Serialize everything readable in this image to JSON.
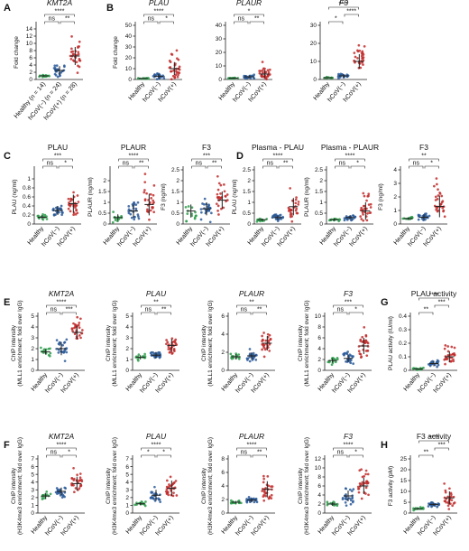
{
  "colors": {
    "Healthy": "#2e9e4c",
    "hCoV(-)": "#2a5b9a",
    "hCoV(+)": "#c22b2b"
  },
  "chart_data": [
    {
      "type": "scatter",
      "panel": "A",
      "title": "KMT2A",
      "italic": true,
      "ylabel": "Fold change",
      "ylim": [
        0,
        15
      ],
      "ticks": [
        0,
        2,
        4,
        6,
        8,
        10,
        12,
        14
      ],
      "categories": [
        "Healthy (n = 14)",
        "hCoV(−) (n = 24)",
        "hCoV(+) (n = 28)"
      ],
      "values": [
        1,
        2.5,
        6.5
      ],
      "spread": [
        0.2,
        1.2,
        2.5
      ],
      "n": [
        14,
        24,
        28
      ],
      "brackets": [
        {
          "from": 0,
          "to": 1,
          "label": "ns",
          "level": 1
        },
        {
          "from": 1,
          "to": 2,
          "label": "**",
          "level": 1
        },
        {
          "from": 0,
          "to": 2,
          "label": "****",
          "level": 2
        }
      ]
    },
    {
      "type": "scatter",
      "panel": "B",
      "title": "PLAU",
      "italic": true,
      "ylabel": "Fold change",
      "ylim": [
        0,
        50
      ],
      "ticks": [
        0,
        10,
        20,
        30,
        40,
        50
      ],
      "categories": [
        "Healthy",
        "hCoV(−)",
        "hCoV(+)"
      ],
      "values": [
        1,
        3,
        10
      ],
      "spread": [
        0.2,
        2,
        6
      ],
      "n": [
        14,
        22,
        30
      ],
      "brackets": [
        {
          "from": 0,
          "to": 1,
          "label": "ns",
          "level": 1
        },
        {
          "from": 1,
          "to": 2,
          "label": "*",
          "level": 1
        },
        {
          "from": 0,
          "to": 2,
          "label": "****",
          "level": 2
        }
      ]
    },
    {
      "type": "scatter",
      "panel": "",
      "title": "PLAUR",
      "italic": true,
      "ylabel": "",
      "ylim": [
        0,
        40
      ],
      "ticks": [
        0,
        10,
        20,
        30,
        40
      ],
      "categories": [
        "Healthy",
        "hCoV(−)",
        "hCoV(+)"
      ],
      "values": [
        1,
        2,
        4
      ],
      "spread": [
        0.2,
        1,
        3
      ],
      "n": [
        14,
        22,
        30
      ],
      "brackets": [
        {
          "from": 0,
          "to": 1,
          "label": "ns",
          "level": 1
        },
        {
          "from": 1,
          "to": 2,
          "label": "**",
          "level": 1
        },
        {
          "from": 0,
          "to": 2,
          "label": "*",
          "level": 2
        }
      ]
    },
    {
      "type": "scatter",
      "panel": "",
      "title": "F3",
      "italic": true,
      "ylabel": "",
      "ylim": [
        0,
        30
      ],
      "ticks": [
        0,
        10,
        20,
        30
      ],
      "categories": [
        "Healthy",
        "hCoV(−)",
        "hCoV(+)"
      ],
      "values": [
        1,
        2,
        10
      ],
      "spread": [
        0.2,
        1,
        4
      ],
      "n": [
        14,
        22,
        30
      ],
      "brackets": [
        {
          "from": 0,
          "to": 1,
          "label": "*",
          "level": 1
        },
        {
          "from": 1,
          "to": 2,
          "label": "****",
          "level": 2
        },
        {
          "from": 0,
          "to": 2,
          "label": "****",
          "level": 3
        }
      ]
    },
    {
      "type": "scatter",
      "panel": "C",
      "title": "PLAU",
      "italic": false,
      "ylabel": "PLAU (ng/ml)",
      "ylim": [
        0,
        1.2
      ],
      "ticks": [
        0,
        0.2,
        0.4,
        0.6,
        0.8,
        1.0
      ],
      "categories": [
        "Healthy",
        "hCoV(−)",
        "hCoV(+)"
      ],
      "values": [
        0.15,
        0.3,
        0.45
      ],
      "spread": [
        0.05,
        0.1,
        0.2
      ],
      "n": [
        14,
        24,
        28
      ],
      "brackets": [
        {
          "from": 0,
          "to": 1,
          "label": "ns",
          "level": 1
        },
        {
          "from": 1,
          "to": 2,
          "label": "*",
          "level": 1
        },
        {
          "from": 0,
          "to": 2,
          "label": "***",
          "level": 2
        }
      ]
    },
    {
      "type": "scatter",
      "panel": "",
      "title": "PLAUR",
      "italic": false,
      "ylabel": "PLAUR (ng/ml)",
      "ylim": [
        0,
        2.5
      ],
      "ticks": [
        0,
        0.5,
        1.0,
        1.5,
        2.0
      ],
      "categories": [
        "Healthy",
        "hCoV(−)",
        "hCoV(+)"
      ],
      "values": [
        0.3,
        0.6,
        0.9
      ],
      "spread": [
        0.15,
        0.3,
        0.5
      ],
      "n": [
        14,
        24,
        28
      ],
      "brackets": [
        {
          "from": 0,
          "to": 1,
          "label": "ns",
          "level": 1
        },
        {
          "from": 1,
          "to": 2,
          "label": "**",
          "level": 1
        },
        {
          "from": 0,
          "to": 2,
          "label": "****",
          "level": 2
        }
      ]
    },
    {
      "type": "scatter",
      "panel": "",
      "title": "F3",
      "italic": false,
      "ylabel": "F3 (ng/ml)",
      "ylim": [
        0,
        2.5
      ],
      "ticks": [
        0,
        0.5,
        1.0,
        1.5,
        2.0,
        2.5
      ],
      "categories": [
        "Healthy",
        "hCoV(−)",
        "hCoV(+)"
      ],
      "values": [
        0.6,
        0.7,
        1.1
      ],
      "spread": [
        0.3,
        0.3,
        0.4
      ],
      "n": [
        14,
        24,
        28
      ],
      "brackets": [
        {
          "from": 0,
          "to": 1,
          "label": "ns",
          "level": 1
        },
        {
          "from": 1,
          "to": 2,
          "label": "**",
          "level": 1
        },
        {
          "from": 0,
          "to": 2,
          "label": "***",
          "level": 2
        }
      ]
    },
    {
      "type": "scatter",
      "panel": "D",
      "title": "Plasma - PLAU",
      "italic": false,
      "ylabel": "PLAU (ng/ml)",
      "ylim": [
        0,
        2.5
      ],
      "ticks": [
        0,
        0.5,
        1.0,
        1.5,
        2.0,
        2.5
      ],
      "categories": [
        "Healthy",
        "hCoV(−)",
        "hCoV(+)"
      ],
      "values": [
        0.2,
        0.3,
        0.8
      ],
      "spread": [
        0.05,
        0.1,
        0.4
      ],
      "n": [
        14,
        24,
        28
      ],
      "brackets": [
        {
          "from": 0,
          "to": 1,
          "label": "ns",
          "level": 1
        },
        {
          "from": 1,
          "to": 2,
          "label": "**",
          "level": 1
        },
        {
          "from": 0,
          "to": 2,
          "label": "****",
          "level": 2
        }
      ]
    },
    {
      "type": "scatter",
      "panel": "",
      "title": "Plasma - PLAUR",
      "italic": false,
      "ylabel": "PLAUR (ng/ml)",
      "ylim": [
        0,
        2.5
      ],
      "ticks": [
        0,
        0.5,
        1.0,
        1.5,
        2.0,
        2.5
      ],
      "categories": [
        "Healthy",
        "hCoV(−)",
        "hCoV(+)"
      ],
      "values": [
        0.2,
        0.3,
        0.6
      ],
      "spread": [
        0.05,
        0.1,
        0.4
      ],
      "n": [
        14,
        24,
        28
      ],
      "brackets": [
        {
          "from": 0,
          "to": 1,
          "label": "ns",
          "level": 1
        },
        {
          "from": 1,
          "to": 2,
          "label": "*",
          "level": 1
        },
        {
          "from": 0,
          "to": 2,
          "label": "****",
          "level": 2
        }
      ]
    },
    {
      "type": "scatter",
      "panel": "",
      "title": "F3",
      "italic": false,
      "ylabel": "F3 (ng/ml)",
      "ylim": [
        0,
        4
      ],
      "ticks": [
        0,
        1,
        2,
        3,
        4
      ],
      "categories": [
        "Healthy",
        "hCoV(−)",
        "hCoV(+)"
      ],
      "values": [
        0.4,
        0.5,
        1.3
      ],
      "spread": [
        0.1,
        0.2,
        0.8
      ],
      "n": [
        14,
        24,
        28
      ],
      "brackets": [
        {
          "from": 0,
          "to": 1,
          "label": "ns",
          "level": 1
        },
        {
          "from": 1,
          "to": 2,
          "label": "*",
          "level": 1
        },
        {
          "from": 0,
          "to": 2,
          "label": "**",
          "level": 2
        }
      ]
    },
    {
      "type": "scatter",
      "panel": "E",
      "title": "KMT2A",
      "italic": true,
      "ylabel": "ChIP intensity (MLL1 enrichment; fold over IgG)",
      "ylim": [
        0,
        5
      ],
      "ticks": [
        0,
        1,
        2,
        3,
        4,
        5
      ],
      "categories": [
        "Healthy",
        "hCoV(−)",
        "hCoV(+)"
      ],
      "values": [
        1.7,
        2.0,
        3.5
      ],
      "spread": [
        0.25,
        0.6,
        0.6
      ],
      "n": [
        14,
        24,
        28
      ],
      "brackets": [
        {
          "from": 0,
          "to": 1,
          "label": "ns",
          "level": 1
        },
        {
          "from": 1,
          "to": 2,
          "label": "***",
          "level": 1
        },
        {
          "from": 0,
          "to": 2,
          "label": "****",
          "level": 2
        }
      ]
    },
    {
      "type": "scatter",
      "panel": "",
      "title": "PLAU",
      "italic": true,
      "ylabel": "ChIP intensity (MLL1 enrichment; fold over IgG)",
      "ylim": [
        0,
        5
      ],
      "ticks": [
        0,
        1,
        2,
        3,
        4,
        5
      ],
      "categories": [
        "Healthy",
        "hCoV(−)",
        "hCoV(+)"
      ],
      "values": [
        1.2,
        1.4,
        2.3
      ],
      "spread": [
        0.2,
        0.3,
        0.6
      ],
      "n": [
        14,
        24,
        28
      ],
      "brackets": [
        {
          "from": 0,
          "to": 1,
          "label": "ns",
          "level": 1
        },
        {
          "from": 1,
          "to": 2,
          "label": "**",
          "level": 1
        },
        {
          "from": 0,
          "to": 2,
          "label": "**",
          "level": 2
        }
      ]
    },
    {
      "type": "scatter",
      "panel": "",
      "title": "PLAUR",
      "italic": true,
      "ylabel": "ChIP intensity (MLL1 enrichment; fold over IgG)",
      "ylim": [
        0,
        6
      ],
      "ticks": [
        0,
        2,
        4,
        6
      ],
      "categories": [
        "Healthy",
        "hCoV(−)",
        "hCoV(+)"
      ],
      "values": [
        1.5,
        1.6,
        3.0
      ],
      "spread": [
        0.3,
        0.4,
        0.8
      ],
      "n": [
        14,
        24,
        28
      ],
      "brackets": [
        {
          "from": 0,
          "to": 1,
          "label": "ns",
          "level": 1
        },
        {
          "from": 1,
          "to": 2,
          "label": "**",
          "level": 1
        },
        {
          "from": 0,
          "to": 2,
          "label": "**",
          "level": 2
        }
      ]
    },
    {
      "type": "scatter",
      "panel": "",
      "title": "F3",
      "italic": true,
      "ylabel": "ChIP intensity (MLL1 enrichment; fold over IgG)",
      "ylim": [
        0,
        10
      ],
      "ticks": [
        0,
        2,
        4,
        6,
        8,
        10
      ],
      "categories": [
        "Healthy",
        "hCoV(−)",
        "hCoV(+)"
      ],
      "values": [
        1.8,
        2.2,
        4.5
      ],
      "spread": [
        0.4,
        0.7,
        1.5
      ],
      "n": [
        14,
        24,
        28
      ],
      "brackets": [
        {
          "from": 0,
          "to": 1,
          "label": "ns",
          "level": 1
        },
        {
          "from": 1,
          "to": 2,
          "label": "*",
          "level": 1
        },
        {
          "from": 0,
          "to": 2,
          "label": "***",
          "level": 2
        }
      ]
    },
    {
      "type": "scatter",
      "panel": "G",
      "title": "PLAU activity",
      "italic": false,
      "ylabel": "PLAU activity (IU/ml)",
      "ylim": [
        0,
        0.4
      ],
      "ticks": [
        0,
        0.1,
        0.2,
        0.3,
        0.4
      ],
      "categories": [
        "Healthy",
        "hCoV(−)",
        "hCoV(+)"
      ],
      "values": [
        0.01,
        0.05,
        0.1
      ],
      "spread": [
        0.005,
        0.02,
        0.04
      ],
      "n": [
        14,
        24,
        28
      ],
      "brackets": [
        {
          "from": 0,
          "to": 1,
          "label": "**",
          "level": 1
        },
        {
          "from": 1,
          "to": 2,
          "label": "***",
          "level": 2
        },
        {
          "from": 0,
          "to": 2,
          "label": "****",
          "level": 3
        }
      ]
    },
    {
      "type": "scatter",
      "panel": "F",
      "title": "KMT2A",
      "italic": true,
      "ylabel": "ChIP intensity (H3K4me3 enrichment; fold over IgG)",
      "ylim": [
        0,
        7
      ],
      "ticks": [
        0,
        1,
        2,
        3,
        4,
        5,
        6,
        7
      ],
      "categories": [
        "Healthy",
        "hCoV(−)",
        "hCoV(+)"
      ],
      "values": [
        2.2,
        2.8,
        3.8
      ],
      "spread": [
        0.4,
        0.5,
        0.9
      ],
      "n": [
        14,
        24,
        28
      ],
      "brackets": [
        {
          "from": 0,
          "to": 1,
          "label": "ns",
          "level": 1
        },
        {
          "from": 1,
          "to": 2,
          "label": "*",
          "level": 1
        },
        {
          "from": 0,
          "to": 2,
          "label": "****",
          "level": 2
        }
      ]
    },
    {
      "type": "scatter",
      "panel": "",
      "title": "PLAU",
      "italic": true,
      "ylabel": "ChIP intensity (H3K4me3 enrichment; fold over IgG)",
      "ylim": [
        0,
        7
      ],
      "ticks": [
        0,
        1,
        2,
        3,
        4,
        5,
        6,
        7
      ],
      "categories": [
        "Healthy",
        "hCoV(−)",
        "hCoV(+)"
      ],
      "values": [
        1.2,
        2.3,
        3.2
      ],
      "spread": [
        0.2,
        0.7,
        1.0
      ],
      "n": [
        14,
        24,
        28
      ],
      "brackets": [
        {
          "from": 0,
          "to": 1,
          "label": "*",
          "level": 1
        },
        {
          "from": 1,
          "to": 2,
          "label": "*",
          "level": 1
        },
        {
          "from": 0,
          "to": 2,
          "label": "****",
          "level": 2
        }
      ]
    },
    {
      "type": "scatter",
      "panel": "",
      "title": "PLAUR",
      "italic": true,
      "ylabel": "ChIP intensity (H3K4me3 enrichment; fold over IgG)",
      "ylim": [
        0,
        8
      ],
      "ticks": [
        0,
        2,
        4,
        6,
        8
      ],
      "categories": [
        "Healthy",
        "hCoV(−)",
        "hCoV(+)"
      ],
      "values": [
        1.6,
        1.9,
        3.5
      ],
      "spread": [
        0.2,
        0.3,
        1.2
      ],
      "n": [
        14,
        24,
        28
      ],
      "brackets": [
        {
          "from": 0,
          "to": 1,
          "label": "ns",
          "level": 1
        },
        {
          "from": 1,
          "to": 2,
          "label": "**",
          "level": 1
        },
        {
          "from": 0,
          "to": 2,
          "label": "****",
          "level": 2
        }
      ]
    },
    {
      "type": "scatter",
      "panel": "",
      "title": "F3",
      "italic": true,
      "ylabel": "ChIP intensity (H3K4me3 enrichment; fold over IgG)",
      "ylim": [
        0,
        12
      ],
      "ticks": [
        0,
        2,
        4,
        6,
        8,
        10,
        12
      ],
      "categories": [
        "Healthy",
        "hCoV(−)",
        "hCoV(+)"
      ],
      "values": [
        2.0,
        3.8,
        6.0
      ],
      "spread": [
        0.4,
        1.2,
        1.8
      ],
      "n": [
        14,
        24,
        28
      ],
      "brackets": [
        {
          "from": 0,
          "to": 1,
          "label": "ns",
          "level": 1
        },
        {
          "from": 1,
          "to": 2,
          "label": "*",
          "level": 1
        },
        {
          "from": 0,
          "to": 2,
          "label": "****",
          "level": 2
        }
      ]
    },
    {
      "type": "scatter",
      "panel": "H",
      "title": "F3 activity",
      "italic": false,
      "ylabel": "F3 activity (pM)",
      "ylim": [
        0,
        25
      ],
      "ticks": [
        0,
        5,
        10,
        15,
        20,
        25
      ],
      "categories": [
        "Healthy",
        "hCoV(−)",
        "hCoV(+)"
      ],
      "values": [
        2,
        4,
        7
      ],
      "spread": [
        0.5,
        0.8,
        3
      ],
      "n": [
        14,
        24,
        28
      ],
      "brackets": [
        {
          "from": 0,
          "to": 1,
          "label": "**",
          "level": 1
        },
        {
          "from": 1,
          "to": 2,
          "label": "***",
          "level": 2
        },
        {
          "from": 0,
          "to": 2,
          "label": "****",
          "level": 3
        }
      ]
    }
  ]
}
